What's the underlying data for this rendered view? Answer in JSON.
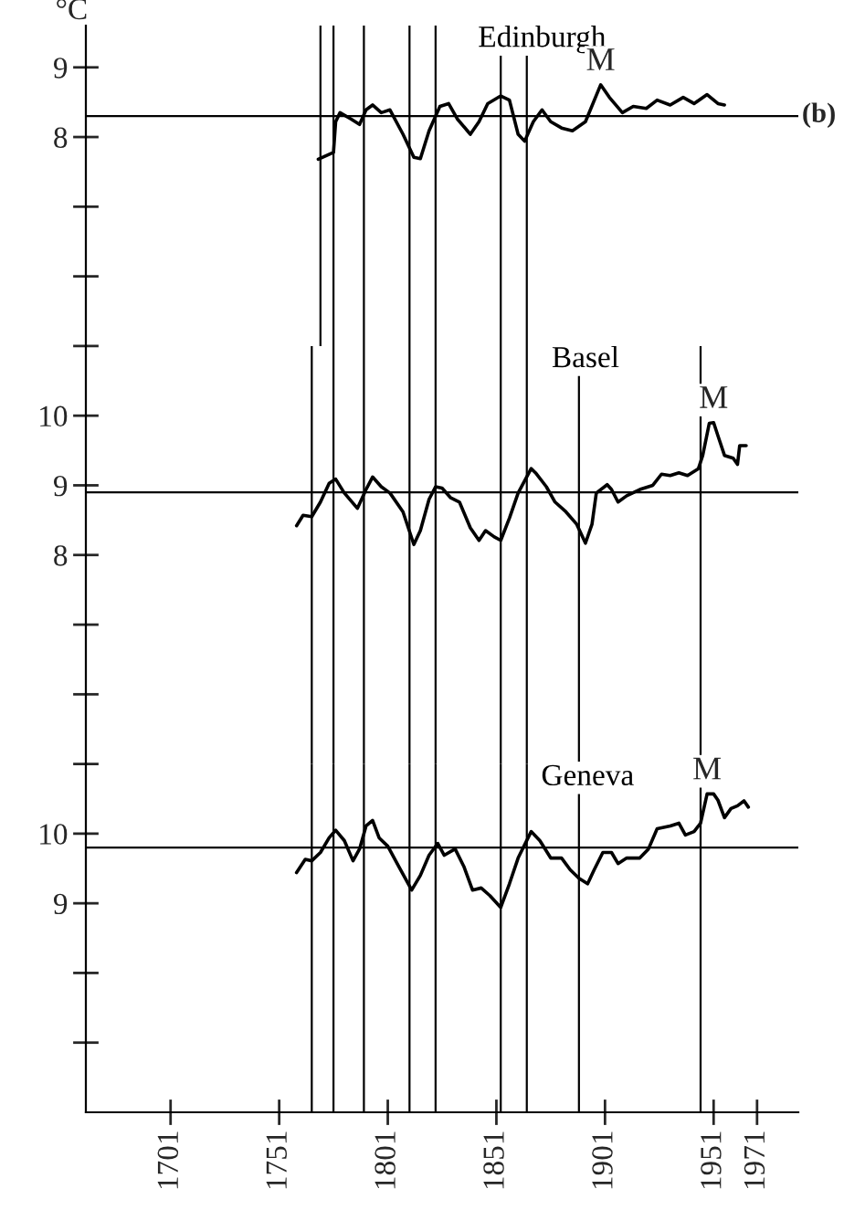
{
  "chart_data": [
    {
      "type": "line",
      "ylabel": "°C",
      "annotations": [
        "(b)",
        {
          "text": "M",
          "x": 1899,
          "y": 8.75
        }
      ],
      "xlim": [
        1662,
        1990
      ],
      "ylim": [
        5,
        9.6
      ],
      "yticks": [
        9,
        8,
        {
          "value": 7,
          "label": null
        },
        {
          "value": 6,
          "label": null
        },
        {
          "value": 5,
          "label": null
        }
      ],
      "tick_labels": "y",
      "series": [
        {
          "name": "Edinburgh",
          "color": "#000000",
          "x": [
            1769,
            1776,
            1777,
            1779,
            1784,
            1788,
            1791,
            1794,
            1798,
            1802,
            1808,
            1813,
            1816,
            1820,
            1825,
            1829,
            1833,
            1839,
            1843,
            1847,
            1853,
            1857,
            1861,
            1864,
            1868,
            1872,
            1876,
            1881,
            1886,
            1892,
            1899,
            1903,
            1909,
            1914,
            1920,
            1925,
            1931,
            1937,
            1942,
            1948,
            1953,
            1956
          ],
          "values": [
            7.68,
            7.78,
            8.22,
            8.35,
            8.26,
            8.18,
            8.39,
            8.46,
            8.35,
            8.39,
            8.04,
            7.71,
            7.69,
            8.09,
            8.44,
            8.48,
            8.26,
            8.04,
            8.22,
            8.48,
            8.59,
            8.53,
            8.04,
            7.94,
            8.22,
            8.39,
            8.22,
            8.13,
            8.09,
            8.22,
            8.75,
            8.57,
            8.35,
            8.44,
            8.41,
            8.53,
            8.46,
            8.57,
            8.48,
            8.61,
            8.48,
            8.46
          ]
        }
      ],
      "ref_lines": [
        {
          "axis": "y",
          "value": 8.3,
          "color": "#000000"
        },
        {
          "axis": "x",
          "value": 1770,
          "color": "#000000"
        },
        {
          "axis": "x",
          "value": 1776,
          "color": "#000000"
        },
        {
          "axis": "x",
          "value": 1790,
          "color": "#000000"
        },
        {
          "axis": "x",
          "value": 1811,
          "color": "#000000"
        },
        {
          "axis": "x",
          "value": 1823,
          "color": "#000000"
        },
        {
          "axis": "x",
          "value": 1853,
          "color": "#000000"
        },
        {
          "axis": "x",
          "value": 1865,
          "color": "#000000"
        }
      ]
    },
    {
      "type": "line",
      "annotations": [
        {
          "text": "M",
          "x": 1951,
          "y": 9.9
        }
      ],
      "xlim": [
        1662,
        1990
      ],
      "ylim": [
        5,
        11
      ],
      "yticks": [
        10,
        9,
        8,
        {
          "value": 7,
          "label": null
        },
        {
          "value": 6,
          "label": null
        },
        {
          "value": 5,
          "label": null
        }
      ],
      "tick_labels": "y",
      "series": [
        {
          "name": "Basel",
          "color": "#000000",
          "x": [
            1759,
            1762,
            1766,
            1770,
            1774,
            1777,
            1781,
            1787,
            1791,
            1794,
            1798,
            1802,
            1808,
            1813,
            1816,
            1820,
            1823,
            1826,
            1830,
            1834,
            1839,
            1843,
            1846,
            1850,
            1853,
            1857,
            1861,
            1867,
            1869,
            1874,
            1878,
            1883,
            1888,
            1892,
            1895,
            1897,
            1902,
            1904,
            1907,
            1911,
            1917,
            1923,
            1927,
            1931,
            1935,
            1939,
            1944,
            1946,
            1949,
            1951,
            1953,
            1956,
            1960,
            1962,
            1963,
            1966
          ],
          "values": [
            8.42,
            8.57,
            8.55,
            8.76,
            9.03,
            9.09,
            8.89,
            8.67,
            8.94,
            9.12,
            8.98,
            8.89,
            8.62,
            8.15,
            8.35,
            8.8,
            8.98,
            8.96,
            8.82,
            8.76,
            8.39,
            8.21,
            8.35,
            8.26,
            8.21,
            8.53,
            8.89,
            9.24,
            9.18,
            8.98,
            8.76,
            8.62,
            8.44,
            8.17,
            8.44,
            8.89,
            9.01,
            8.94,
            8.76,
            8.85,
            8.94,
            9.0,
            9.16,
            9.14,
            9.18,
            9.14,
            9.24,
            9.43,
            9.89,
            9.9,
            9.71,
            9.43,
            9.39,
            9.3,
            9.57,
            9.57
          ]
        }
      ],
      "ref_lines": [
        {
          "axis": "y",
          "value": 8.9,
          "color": "#000000"
        },
        {
          "axis": "x",
          "value": 1766,
          "color": "#000000"
        },
        {
          "axis": "x",
          "value": 1776,
          "color": "#000000"
        },
        {
          "axis": "x",
          "value": 1790,
          "color": "#000000"
        },
        {
          "axis": "x",
          "value": 1811,
          "color": "#000000"
        },
        {
          "axis": "x",
          "value": 1823,
          "color": "#000000"
        },
        {
          "axis": "x",
          "value": 1853,
          "color": "#000000"
        },
        {
          "axis": "x",
          "value": 1865,
          "color": "#000000"
        },
        {
          "axis": "x",
          "value": 1889,
          "color": "#000000"
        },
        {
          "axis": "x",
          "value": 1945,
          "color": "#000000"
        }
      ]
    },
    {
      "type": "line",
      "annotations": [
        {
          "text": "M",
          "x": 1948,
          "y": 10.57
        }
      ],
      "xlim": [
        1662,
        1990
      ],
      "ylim": [
        6,
        11
      ],
      "yticks": [
        10,
        9,
        {
          "value": 8,
          "label": null
        },
        {
          "value": 7,
          "label": null
        }
      ],
      "xticks": [
        1701,
        1751,
        1801,
        1851,
        1901,
        1951,
        1971
      ],
      "series": [
        {
          "name": "Geneva",
          "color": "#000000",
          "x": [
            1759,
            1763,
            1766,
            1770,
            1774,
            1777,
            1781,
            1785,
            1788,
            1791,
            1794,
            1797,
            1801,
            1806,
            1812,
            1816,
            1820,
            1824,
            1827,
            1832,
            1836,
            1840,
            1844,
            1848,
            1853,
            1857,
            1861,
            1867,
            1871,
            1876,
            1881,
            1885,
            1889,
            1893,
            1896,
            1900,
            1904,
            1907,
            1911,
            1917,
            1921,
            1925,
            1931,
            1935,
            1938,
            1942,
            1945,
            1948,
            1951,
            1953,
            1956,
            1959,
            1962,
            1965,
            1967
          ],
          "values": [
            9.44,
            9.63,
            9.61,
            9.73,
            9.94,
            10.05,
            9.9,
            9.61,
            9.78,
            10.11,
            10.19,
            9.94,
            9.82,
            9.53,
            9.19,
            9.4,
            9.69,
            9.86,
            9.69,
            9.78,
            9.53,
            9.19,
            9.22,
            9.11,
            8.94,
            9.28,
            9.65,
            10.03,
            9.9,
            9.65,
            9.65,
            9.48,
            9.36,
            9.28,
            9.48,
            9.73,
            9.73,
            9.57,
            9.65,
            9.65,
            9.78,
            10.07,
            10.11,
            10.15,
            9.98,
            10.03,
            10.15,
            10.57,
            10.57,
            10.48,
            10.23,
            10.36,
            10.4,
            10.47,
            10.38
          ]
        }
      ],
      "ref_lines": [
        {
          "axis": "y",
          "value": 9.8,
          "color": "#000000"
        },
        {
          "axis": "x",
          "value": 1766,
          "color": "#000000"
        },
        {
          "axis": "x",
          "value": 1776,
          "color": "#000000"
        },
        {
          "axis": "x",
          "value": 1790,
          "color": "#000000"
        },
        {
          "axis": "x",
          "value": 1811,
          "color": "#000000"
        },
        {
          "axis": "x",
          "value": 1823,
          "color": "#000000"
        },
        {
          "axis": "x",
          "value": 1853,
          "color": "#000000"
        },
        {
          "axis": "x",
          "value": 1865,
          "color": "#000000"
        },
        {
          "axis": "x",
          "value": 1889,
          "color": "#000000"
        },
        {
          "axis": "x",
          "value": 1945,
          "color": "#000000"
        }
      ]
    }
  ]
}
